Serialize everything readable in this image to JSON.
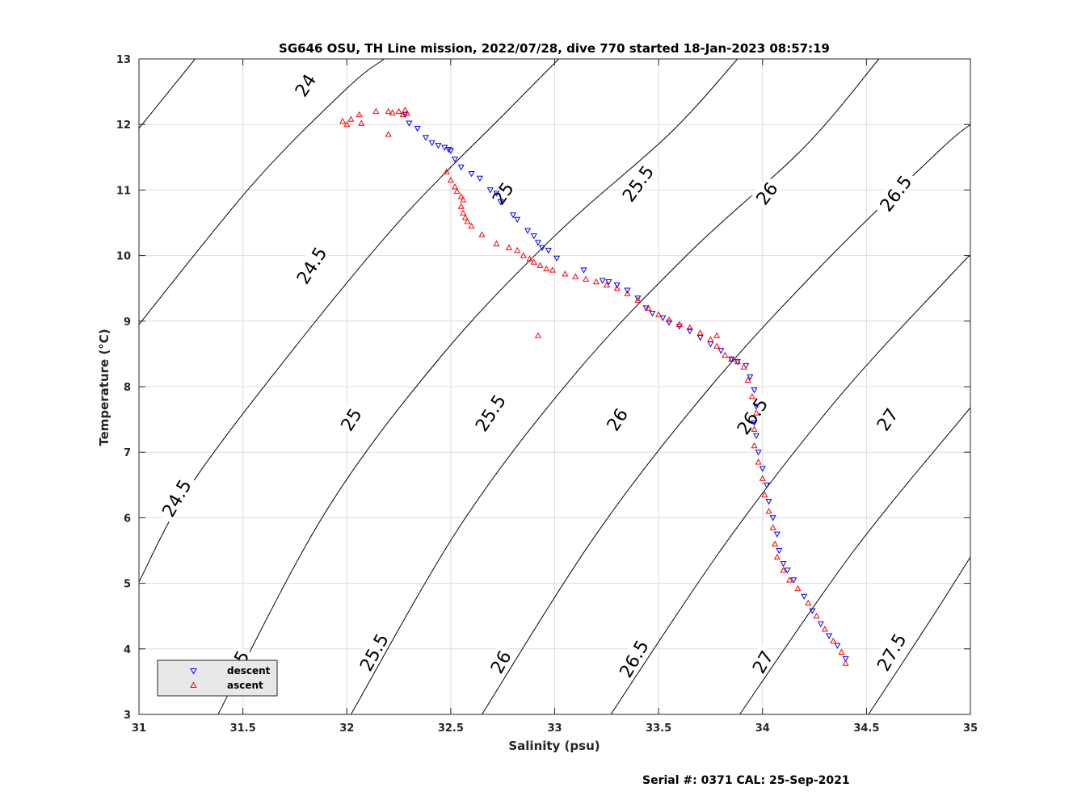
{
  "chart_data": {
    "type": "scatter",
    "title": "SG646 OSU, TH Line mission, 2022/07/28, dive 770 started 18-Jan-2023 08:57:19",
    "xlabel": "Salinity (psu)",
    "ylabel": "Temperature (°C)",
    "xlim": [
      31,
      35
    ],
    "ylim": [
      3,
      13
    ],
    "grid": true,
    "xticks": [
      "31",
      "31.5",
      "32",
      "32.5",
      "33",
      "33.5",
      "34",
      "34.5",
      "35"
    ],
    "yticks": [
      "3",
      "4",
      "5",
      "6",
      "7",
      "8",
      "9",
      "10",
      "11",
      "12",
      "13"
    ],
    "legend_position": "bottom-left",
    "series": [
      {
        "name": "descent",
        "marker": "triangle-down",
        "color": "#0000ff",
        "points": [
          [
            32.28,
            12.15
          ],
          [
            32.3,
            12.02
          ],
          [
            32.34,
            11.94
          ],
          [
            32.38,
            11.8
          ],
          [
            32.41,
            11.72
          ],
          [
            32.44,
            11.68
          ],
          [
            32.47,
            11.65
          ],
          [
            32.49,
            11.62
          ],
          [
            32.5,
            11.6
          ],
          [
            32.52,
            11.47
          ],
          [
            32.55,
            11.35
          ],
          [
            32.6,
            11.25
          ],
          [
            32.64,
            11.18
          ],
          [
            32.69,
            11.0
          ],
          [
            32.72,
            10.95
          ],
          [
            32.74,
            10.82
          ],
          [
            32.8,
            10.62
          ],
          [
            32.82,
            10.55
          ],
          [
            32.87,
            10.38
          ],
          [
            32.9,
            10.3
          ],
          [
            32.92,
            10.2
          ],
          [
            32.94,
            10.12
          ],
          [
            32.97,
            10.08
          ],
          [
            33.01,
            9.96
          ],
          [
            33.14,
            9.78
          ],
          [
            33.23,
            9.62
          ],
          [
            33.26,
            9.6
          ],
          [
            33.3,
            9.55
          ],
          [
            33.35,
            9.47
          ],
          [
            33.4,
            9.35
          ],
          [
            33.44,
            9.2
          ],
          [
            33.47,
            9.12
          ],
          [
            33.52,
            9.05
          ],
          [
            33.55,
            8.98
          ],
          [
            33.6,
            8.92
          ],
          [
            33.65,
            8.85
          ],
          [
            33.7,
            8.75
          ],
          [
            33.75,
            8.65
          ],
          [
            33.8,
            8.55
          ],
          [
            33.85,
            8.42
          ],
          [
            33.88,
            8.38
          ],
          [
            33.92,
            8.32
          ],
          [
            33.94,
            8.15
          ],
          [
            33.96,
            7.95
          ],
          [
            33.97,
            7.7
          ],
          [
            33.96,
            7.45
          ],
          [
            33.97,
            7.25
          ],
          [
            33.98,
            7.0
          ],
          [
            34.0,
            6.75
          ],
          [
            34.02,
            6.5
          ],
          [
            34.03,
            6.25
          ],
          [
            34.05,
            6.0
          ],
          [
            34.07,
            5.75
          ],
          [
            34.08,
            5.5
          ],
          [
            34.1,
            5.3
          ],
          [
            34.12,
            5.2
          ],
          [
            34.15,
            5.05
          ],
          [
            34.2,
            4.8
          ],
          [
            34.24,
            4.58
          ],
          [
            34.28,
            4.38
          ],
          [
            34.32,
            4.2
          ],
          [
            34.36,
            4.05
          ],
          [
            34.4,
            3.85
          ]
        ]
      },
      {
        "name": "ascent",
        "marker": "triangle-up",
        "color": "#ff0000",
        "points": [
          [
            31.98,
            12.05
          ],
          [
            32.0,
            12.0
          ],
          [
            32.02,
            12.08
          ],
          [
            32.06,
            12.15
          ],
          [
            32.07,
            12.02
          ],
          [
            32.14,
            12.2
          ],
          [
            32.2,
            12.2
          ],
          [
            32.22,
            12.18
          ],
          [
            32.25,
            12.2
          ],
          [
            32.27,
            12.15
          ],
          [
            32.28,
            12.22
          ],
          [
            32.29,
            12.17
          ],
          [
            32.2,
            11.85
          ],
          [
            32.48,
            11.28
          ],
          [
            32.5,
            11.15
          ],
          [
            32.52,
            11.05
          ],
          [
            32.53,
            10.98
          ],
          [
            32.55,
            10.9
          ],
          [
            32.56,
            10.85
          ],
          [
            32.55,
            10.75
          ],
          [
            32.56,
            10.65
          ],
          [
            32.57,
            10.58
          ],
          [
            32.58,
            10.52
          ],
          [
            32.6,
            10.45
          ],
          [
            32.65,
            10.32
          ],
          [
            32.72,
            10.18
          ],
          [
            32.78,
            10.12
          ],
          [
            32.82,
            10.08
          ],
          [
            32.85,
            10.0
          ],
          [
            32.88,
            9.95
          ],
          [
            32.9,
            9.9
          ],
          [
            32.93,
            9.85
          ],
          [
            32.96,
            9.8
          ],
          [
            32.99,
            9.78
          ],
          [
            33.05,
            9.72
          ],
          [
            33.1,
            9.68
          ],
          [
            33.15,
            9.64
          ],
          [
            33.2,
            9.6
          ],
          [
            33.25,
            9.55
          ],
          [
            33.3,
            9.5
          ],
          [
            33.35,
            9.42
          ],
          [
            33.4,
            9.32
          ],
          [
            33.45,
            9.2
          ],
          [
            33.5,
            9.1
          ],
          [
            33.55,
            9.02
          ],
          [
            33.6,
            8.95
          ],
          [
            33.65,
            8.9
          ],
          [
            33.7,
            8.82
          ],
          [
            33.75,
            8.72
          ],
          [
            33.78,
            8.62
          ],
          [
            33.82,
            8.48
          ],
          [
            33.85,
            8.42
          ],
          [
            33.88,
            8.38
          ],
          [
            33.91,
            8.3
          ],
          [
            33.93,
            8.1
          ],
          [
            33.95,
            7.85
          ],
          [
            33.97,
            7.6
          ],
          [
            33.96,
            7.35
          ],
          [
            33.96,
            7.1
          ],
          [
            33.98,
            6.85
          ],
          [
            34.0,
            6.6
          ],
          [
            34.01,
            6.35
          ],
          [
            34.03,
            6.1
          ],
          [
            34.05,
            5.85
          ],
          [
            34.06,
            5.6
          ],
          [
            34.07,
            5.4
          ],
          [
            34.1,
            5.2
          ],
          [
            34.13,
            5.05
          ],
          [
            34.17,
            4.92
          ],
          [
            34.22,
            4.7
          ],
          [
            34.26,
            4.5
          ],
          [
            34.3,
            4.3
          ],
          [
            34.34,
            4.12
          ],
          [
            34.38,
            3.95
          ],
          [
            34.4,
            3.78
          ],
          [
            32.92,
            8.78
          ],
          [
            33.78,
            8.78
          ]
        ]
      }
    ],
    "isopycnals": [
      {
        "sigma": 24.0,
        "points": [
          [
            31.0,
            11.94
          ],
          [
            31.27,
            13.0
          ]
        ]
      },
      {
        "sigma": 24.5,
        "points": [
          [
            31.0,
            8.95
          ],
          [
            31.55,
            11.1
          ],
          [
            32.0,
            12.55
          ],
          [
            32.18,
            13.0
          ]
        ]
      },
      {
        "sigma": 24.5,
        "points": [
          [
            31.0,
            5.02
          ],
          [
            31.25,
            6.5
          ],
          [
            31.75,
            8.6
          ],
          [
            32.26,
            10.55
          ],
          [
            32.77,
            12.2
          ],
          [
            33.02,
            13.0
          ]
        ]
      },
      {
        "sigma": 25.0,
        "points": [
          [
            31.38,
            3.0
          ],
          [
            31.9,
            6.1
          ],
          [
            32.45,
            8.45
          ],
          [
            33.0,
            10.3
          ],
          [
            33.55,
            11.85
          ],
          [
            33.88,
            13.0
          ]
        ]
      },
      {
        "sigma": 25.5,
        "points": [
          [
            32.02,
            3.0
          ],
          [
            32.55,
            5.9
          ],
          [
            33.1,
            8.2
          ],
          [
            33.65,
            10.05
          ],
          [
            34.2,
            11.65
          ],
          [
            34.56,
            13.0
          ]
        ]
      },
      {
        "sigma": 26.0,
        "points": [
          [
            32.65,
            3.0
          ],
          [
            33.2,
            5.75
          ],
          [
            33.75,
            8.0
          ],
          [
            34.3,
            9.9
          ],
          [
            34.85,
            11.6
          ],
          [
            35.0,
            12.0
          ]
        ]
      },
      {
        "sigma": 26.5,
        "points": [
          [
            33.27,
            3.0
          ],
          [
            33.82,
            5.6
          ],
          [
            34.37,
            7.85
          ],
          [
            34.92,
            9.75
          ],
          [
            35.0,
            10.0
          ]
        ]
      },
      {
        "sigma": 27.0,
        "points": [
          [
            33.89,
            3.0
          ],
          [
            34.44,
            5.5
          ],
          [
            35.0,
            7.68
          ]
        ]
      },
      {
        "sigma": 27.5,
        "points": [
          [
            34.51,
            3.0
          ],
          [
            34.8,
            4.4
          ],
          [
            35.0,
            5.4
          ]
        ]
      }
    ],
    "contour_labels": [
      {
        "text": "24",
        "s": 31.8,
        "t": 12.6,
        "angle": -58
      },
      {
        "text": "24.5",
        "s": 31.83,
        "t": 9.85,
        "angle": -58
      },
      {
        "text": "24.5",
        "s": 31.18,
        "t": 6.3,
        "angle": -60
      },
      {
        "text": "25",
        "s": 32.75,
        "t": 10.95,
        "angle": -55
      },
      {
        "text": "25",
        "s": 32.02,
        "t": 7.5,
        "angle": -58
      },
      {
        "text": "25",
        "s": 31.48,
        "t": 3.8,
        "angle": -62
      },
      {
        "text": "25.5",
        "s": 33.4,
        "t": 11.1,
        "angle": -54
      },
      {
        "text": "25.5",
        "s": 32.69,
        "t": 7.6,
        "angle": -57
      },
      {
        "text": "25.5",
        "s": 32.13,
        "t": 3.95,
        "angle": -61
      },
      {
        "text": "26",
        "s": 34.02,
        "t": 10.95,
        "angle": -53
      },
      {
        "text": "26",
        "s": 33.3,
        "t": 7.5,
        "angle": -57
      },
      {
        "text": "26",
        "s": 32.74,
        "t": 3.8,
        "angle": -61
      },
      {
        "text": "26.5",
        "s": 34.64,
        "t": 10.95,
        "angle": -53
      },
      {
        "text": "26.5",
        "s": 33.95,
        "t": 7.55,
        "angle": -56
      },
      {
        "text": "26.5",
        "s": 33.38,
        "t": 3.85,
        "angle": -60
      },
      {
        "text": "27",
        "s": 34.6,
        "t": 7.5,
        "angle": -56
      },
      {
        "text": "27",
        "s": 34.0,
        "t": 3.8,
        "angle": -60
      },
      {
        "text": "27.5",
        "s": 34.62,
        "t": 3.95,
        "angle": -60
      }
    ]
  },
  "footer": {
    "serial_label": "Serial #: 0371  CAL: 25-Sep-2021"
  }
}
